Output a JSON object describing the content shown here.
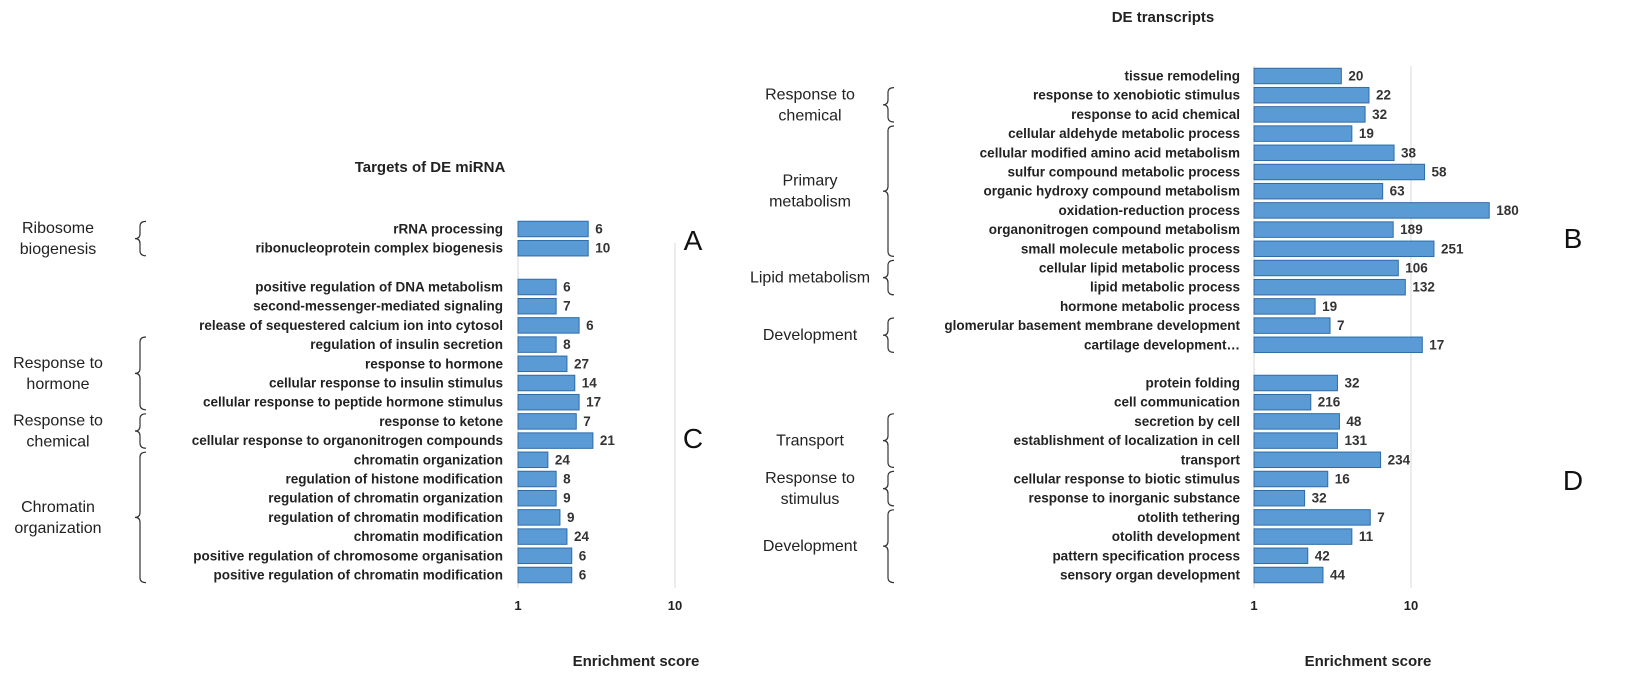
{
  "chart_data": [
    {
      "type": "bar",
      "orientation": "horizontal",
      "x_scale": "log",
      "xlim": [
        1,
        30
      ],
      "title": "Targets of DE miRNA",
      "xlabel": "Enrichment score",
      "x_ticks": [
        "1",
        "10"
      ],
      "panel_labels": [
        "A",
        "C"
      ],
      "blocks": [
        {
          "panel": "A",
          "categories": [
            "rRNA processing",
            "ribonucleoprotein complex biogenesis"
          ],
          "values": [
            2.8,
            2.8
          ],
          "labels": [
            "6",
            "10"
          ],
          "groups": [
            {
              "label": "Ribosome biogenesis",
              "lines": [
                "Ribosome",
                "biogenesis"
              ],
              "rows": [
                0,
                1
              ]
            }
          ]
        },
        {
          "panel": "C",
          "categories": [
            "positive regulation of DNA metabolism",
            "second-messenger-mediated signaling",
            "release of sequestered calcium ion into cytosol",
            "regulation of insulin secretion",
            "response to hormone",
            "cellular response to insulin stimulus",
            "cellular response to peptide hormone stimulus",
            "response to ketone",
            "cellular response to organonitrogen compounds",
            "chromatin organization",
            "regulation of histone modification",
            "regulation of chromatin organization",
            "regulation of chromatin modification",
            "chromatin modification",
            "positive regulation of chromosome organisation",
            "positive regulation of chromatin modification"
          ],
          "values": [
            1.75,
            1.75,
            2.45,
            1.75,
            2.05,
            2.3,
            2.45,
            2.35,
            3.0,
            1.55,
            1.75,
            1.75,
            1.85,
            2.05,
            2.2,
            2.2
          ],
          "labels": [
            "6",
            "7",
            "6",
            "8",
            "27",
            "14",
            "17",
            "7",
            "21",
            "24",
            "8",
            "9",
            "9",
            "24",
            "6",
            "6"
          ],
          "groups": [
            {
              "label": "Response to hormone",
              "lines": [
                "Response to",
                "hormone"
              ],
              "rows": [
                3,
                6
              ]
            },
            {
              "label": "Response to chemical",
              "lines": [
                "Response to",
                "chemical"
              ],
              "rows": [
                7,
                8
              ]
            },
            {
              "label": "Chromatin organization",
              "lines": [
                "Chromatin",
                "organization"
              ],
              "rows": [
                9,
                15
              ]
            }
          ]
        }
      ]
    },
    {
      "type": "bar",
      "orientation": "horizontal",
      "x_scale": "log",
      "xlim": [
        1,
        30
      ],
      "title": "DE transcripts",
      "xlabel": "Enrichment score",
      "x_ticks": [
        "1",
        "10"
      ],
      "panel_labels": [
        "B",
        "D"
      ],
      "blocks": [
        {
          "panel": "B",
          "categories": [
            "tissue remodeling",
            "response to xenobiotic stimulus",
            "response to acid chemical",
            "cellular aldehyde metabolic process",
            "cellular modified amino acid metabolism",
            "sulfur compound metabolic process",
            "organic hydroxy compound metabolism",
            "oxidation-reduction process",
            "organonitrogen compound metabolism",
            "small molecule metabolic process",
            "cellular lipid metabolic process",
            "lipid metabolic process",
            "hormone metabolic process",
            "glomerular basement membrane development",
            "cartilage development…"
          ],
          "values": [
            3.6,
            5.4,
            5.1,
            4.2,
            7.8,
            12.2,
            6.6,
            31.5,
            7.7,
            14.0,
            8.3,
            9.2,
            2.45,
            3.05,
            11.8
          ],
          "labels": [
            "20",
            "22",
            "32",
            "19",
            "38",
            "58",
            "63",
            "180",
            "189",
            "251",
            "106",
            "132",
            "19",
            "7",
            "17"
          ],
          "groups": [
            {
              "label": "Response to chemical",
              "lines": [
                "Response to",
                "chemical"
              ],
              "rows": [
                1,
                2
              ]
            },
            {
              "label": "Primary metabolism",
              "lines": [
                "Primary",
                "metabolism"
              ],
              "rows": [
                3,
                9
              ]
            },
            {
              "label": "Lipid metabolism",
              "lines": [
                "Lipid metabolism"
              ],
              "rows": [
                10,
                11
              ]
            },
            {
              "label": "Development",
              "lines": [
                "Development"
              ],
              "rows": [
                13,
                14
              ]
            }
          ]
        },
        {
          "panel": "D",
          "categories": [
            "protein folding",
            "cell communication",
            "secretion by cell",
            "establishment of localization in cell",
            "transport",
            "cellular response to biotic stimulus",
            "response to inorganic substance",
            "otolith tethering",
            "otolith development",
            "pattern specification process",
            "sensory organ development"
          ],
          "values": [
            3.4,
            2.3,
            3.5,
            3.4,
            6.4,
            2.95,
            2.1,
            5.5,
            4.2,
            2.2,
            2.75
          ],
          "labels": [
            "32",
            "216",
            "48",
            "131",
            "234",
            "16",
            "32",
            "7",
            "11",
            "42",
            "44"
          ],
          "groups": [
            {
              "label": "Transport",
              "lines": [
                "Transport"
              ],
              "rows": [
                2,
                4
              ]
            },
            {
              "label": "Response to stimulus",
              "lines": [
                "Response to",
                "stimulus"
              ],
              "rows": [
                5,
                6
              ]
            },
            {
              "label": "Development",
              "lines": [
                "Development"
              ],
              "rows": [
                7,
                10
              ]
            }
          ]
        }
      ]
    }
  ]
}
